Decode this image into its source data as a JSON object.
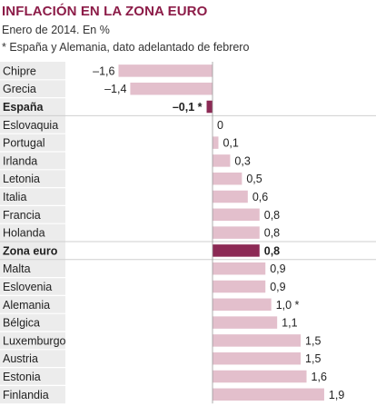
{
  "header": {
    "title": "INFLACIÓN EN LA ZONA EURO",
    "subtitle": "Enero de 2014. En %",
    "note": "* España y Alemania, dato adelantado de febrero"
  },
  "colors": {
    "bar": "#e3bfcc",
    "bar_highlight": "#8c2a55",
    "title": "#8c1c48",
    "label_bg": "#ececec",
    "separator": "#ffffff",
    "baseline": "#999999"
  },
  "chart_data": {
    "type": "bar",
    "orientation": "horizontal",
    "categories": [
      "Chipre",
      "Grecia",
      "España",
      "Eslovaquia",
      "Portugal",
      "Irlanda",
      "Letonia",
      "Italia",
      "Francia",
      "Holanda",
      "Zona euro",
      "Malta",
      "Eslovenia",
      "Alemania",
      "Bélgica",
      "Luxemburgo",
      "Austria",
      "Estonia",
      "Finlandia"
    ],
    "values": [
      -1.6,
      -1.4,
      -0.1,
      0,
      0.1,
      0.3,
      0.5,
      0.6,
      0.8,
      0.8,
      0.8,
      0.9,
      0.9,
      1.0,
      1.1,
      1.5,
      1.5,
      1.6,
      1.9
    ],
    "value_labels": [
      "–1,6",
      "–1,4",
      "–0,1 *",
      "0",
      "0,1",
      "0,3",
      "0,5",
      "0,6",
      "0,8",
      "0,8",
      "0,8",
      "0,9",
      "0,9",
      "1,0 *",
      "1,1",
      "1,5",
      "1,5",
      "1,6",
      "1,9"
    ],
    "highlighted": [
      "España",
      "Zona euro"
    ],
    "xlim": [
      -1.6,
      1.9
    ],
    "grid": false,
    "title": "INFLACIÓN EN LA ZONA EURO",
    "xlabel": "",
    "ylabel": ""
  }
}
